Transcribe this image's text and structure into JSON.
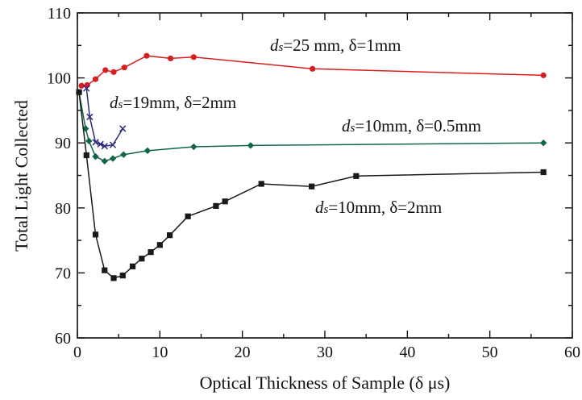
{
  "chart_data": {
    "type": "line",
    "xlabel": "Optical Thickness of Sample (δ μs)",
    "ylabel": "Total Light Collected",
    "xlim": [
      0,
      60
    ],
    "ylim": [
      60,
      110
    ],
    "x_ticks": [
      "0",
      "10",
      "20",
      "30",
      "40",
      "50",
      "60"
    ],
    "y_ticks": [
      "60",
      "70",
      "80",
      "90",
      "100",
      "110"
    ],
    "grid": false,
    "legend": "none",
    "series": [
      {
        "name": "ds=25 mm, δ=1mm",
        "color": "#d62020",
        "marker": "circle",
        "x": [
          0.5,
          1.2,
          2.2,
          3.4,
          4.4,
          5.7,
          8.4,
          11.3,
          14.1,
          28.5,
          56.5
        ],
        "y": [
          98.8,
          98.9,
          99.8,
          101.2,
          100.9,
          101.6,
          103.4,
          103.0,
          103.2,
          101.4,
          100.4
        ]
      },
      {
        "name": "ds=19mm, δ=2mm",
        "color": "#2a2a7a",
        "marker": "x",
        "x": [
          1.1,
          1.5,
          2.2,
          2.8,
          3.3,
          4.3,
          5.5
        ],
        "y": [
          98.4,
          94.0,
          90.1,
          89.8,
          89.5,
          89.7,
          92.2
        ]
      },
      {
        "name": "ds=10mm, δ=0.5mm",
        "color": "#11664a",
        "marker": "diamond",
        "x": [
          0.2,
          1.0,
          1.4,
          2.2,
          3.3,
          4.3,
          5.6,
          8.5,
          14.1,
          21.0,
          56.5
        ],
        "y": [
          97.8,
          92.2,
          90.3,
          87.9,
          87.2,
          87.6,
          88.2,
          88.8,
          89.4,
          89.6,
          90.0
        ]
      },
      {
        "name": "ds=10mm, δ=2mm",
        "color": "#1a1a1a",
        "marker": "square",
        "x": [
          0.2,
          1.1,
          2.2,
          3.3,
          4.4,
          5.5,
          6.7,
          7.8,
          8.9,
          10.0,
          11.2,
          13.4,
          16.8,
          17.9,
          22.3,
          28.4,
          33.8,
          56.5
        ],
        "y": [
          97.8,
          88.1,
          75.9,
          70.4,
          69.2,
          69.6,
          71.0,
          72.2,
          73.2,
          74.3,
          75.8,
          78.7,
          80.3,
          81.0,
          83.7,
          83.3,
          84.9,
          85.5
        ]
      }
    ],
    "annotations": [
      {
        "pre": "d",
        "sub": "s",
        "post": "=25 mm, δ=1mm"
      },
      {
        "pre": "d",
        "sub": "s",
        "post": "=19mm, δ=2mm"
      },
      {
        "pre": "d",
        "sub": "s",
        "post": "=10mm, δ=0.5mm"
      },
      {
        "pre": "d",
        "sub": "s",
        "post": "=10mm, δ=2mm"
      }
    ]
  }
}
